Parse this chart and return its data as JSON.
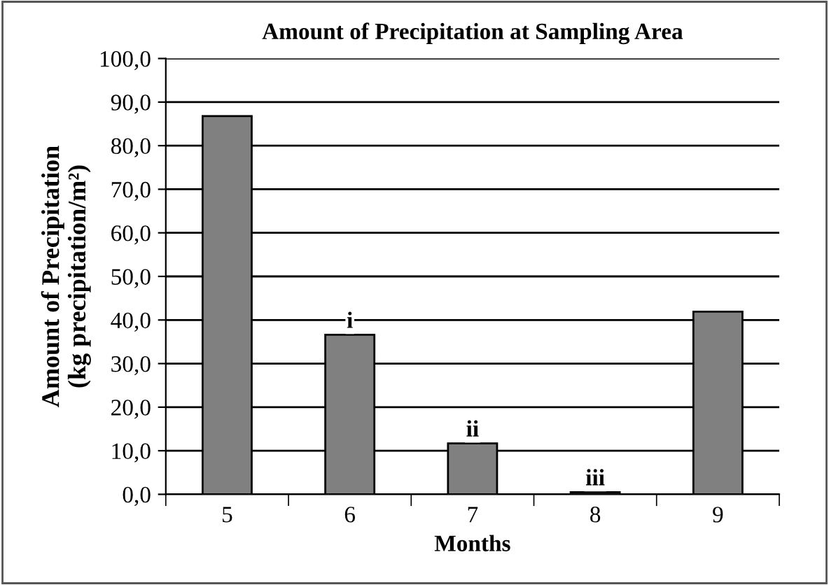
{
  "chart_data": {
    "type": "bar",
    "title": "Amount of Precipitation at Sampling Area",
    "xlabel": "Months",
    "ylabel": "Amount of Precipitation\n(kg precipitation/m²)",
    "categories": [
      "5",
      "6",
      "7",
      "8",
      "9"
    ],
    "values": [
      86.8,
      36.6,
      11.7,
      0.5,
      41.9
    ],
    "color": "#808080",
    "ylim": [
      0,
      100
    ],
    "yticks": [
      {
        "value": 0,
        "label": "0,0"
      },
      {
        "value": 10,
        "label": "10,0"
      },
      {
        "value": 20,
        "label": "20,0"
      },
      {
        "value": 30,
        "label": "30,0"
      },
      {
        "value": 40,
        "label": "40,0"
      },
      {
        "value": 50,
        "label": "50,0"
      },
      {
        "value": 60,
        "label": "60,0"
      },
      {
        "value": 70,
        "label": "70,0"
      },
      {
        "value": 80,
        "label": "80,0"
      },
      {
        "value": 90,
        "label": "90,0"
      },
      {
        "value": 100,
        "label": "100,0"
      }
    ],
    "grid": "y",
    "annotations": [
      {
        "text": "i",
        "x": "6",
        "y": 36.6
      },
      {
        "text": "ii",
        "x": "7",
        "y": 11.7
      },
      {
        "text": "iii",
        "x": "8",
        "y": 0.5
      }
    ]
  }
}
